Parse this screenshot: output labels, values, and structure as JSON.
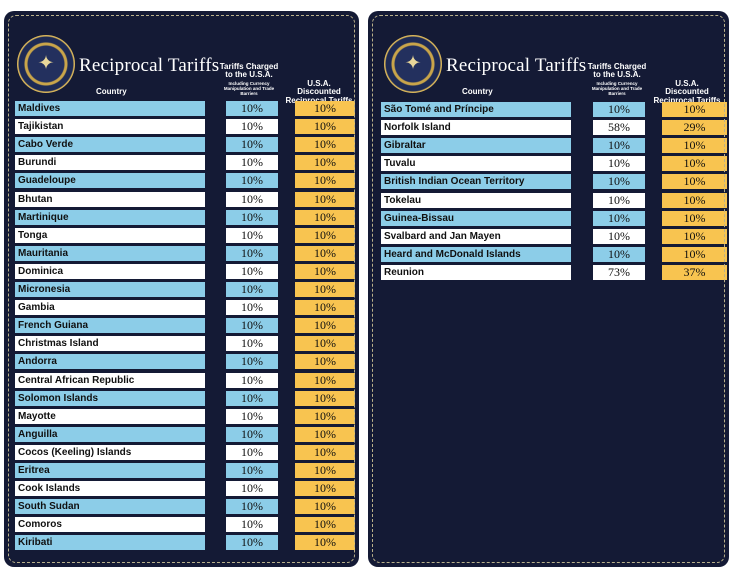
{
  "title": "Reciprocal Tariffs",
  "headers": {
    "country": "Country",
    "charged": "Tariffs Charged to the U.S.A.",
    "charged_sub": "Including Currency Manipulation and Trade Barriers",
    "discounted": "U.S.A. Discounted Reciprocal Tariffs"
  },
  "colors": {
    "panel": "#141a35",
    "blue_row": "#8ccde8",
    "white_row": "#ffffff",
    "discount_cell": "#f8c450"
  },
  "seal_icon": "presidential-seal",
  "left_rows": [
    {
      "country": "Maldives",
      "charged": "10%",
      "discounted": "10%"
    },
    {
      "country": "Tajikistan",
      "charged": "10%",
      "discounted": "10%"
    },
    {
      "country": "Cabo Verde",
      "charged": "10%",
      "discounted": "10%"
    },
    {
      "country": "Burundi",
      "charged": "10%",
      "discounted": "10%"
    },
    {
      "country": "Guadeloupe",
      "charged": "10%",
      "discounted": "10%"
    },
    {
      "country": "Bhutan",
      "charged": "10%",
      "discounted": "10%"
    },
    {
      "country": "Martinique",
      "charged": "10%",
      "discounted": "10%"
    },
    {
      "country": "Tonga",
      "charged": "10%",
      "discounted": "10%"
    },
    {
      "country": "Mauritania",
      "charged": "10%",
      "discounted": "10%"
    },
    {
      "country": "Dominica",
      "charged": "10%",
      "discounted": "10%"
    },
    {
      "country": "Micronesia",
      "charged": "10%",
      "discounted": "10%"
    },
    {
      "country": "Gambia",
      "charged": "10%",
      "discounted": "10%"
    },
    {
      "country": "French Guiana",
      "charged": "10%",
      "discounted": "10%"
    },
    {
      "country": "Christmas Island",
      "charged": "10%",
      "discounted": "10%"
    },
    {
      "country": "Andorra",
      "charged": "10%",
      "discounted": "10%"
    },
    {
      "country": "Central African Republic",
      "charged": "10%",
      "discounted": "10%"
    },
    {
      "country": "Solomon Islands",
      "charged": "10%",
      "discounted": "10%"
    },
    {
      "country": "Mayotte",
      "charged": "10%",
      "discounted": "10%"
    },
    {
      "country": "Anguilla",
      "charged": "10%",
      "discounted": "10%"
    },
    {
      "country": "Cocos (Keeling) Islands",
      "charged": "10%",
      "discounted": "10%"
    },
    {
      "country": "Eritrea",
      "charged": "10%",
      "discounted": "10%"
    },
    {
      "country": "Cook Islands",
      "charged": "10%",
      "discounted": "10%"
    },
    {
      "country": "South Sudan",
      "charged": "10%",
      "discounted": "10%"
    },
    {
      "country": "Comoros",
      "charged": "10%",
      "discounted": "10%"
    },
    {
      "country": "Kiribati",
      "charged": "10%",
      "discounted": "10%"
    }
  ],
  "right_rows": [
    {
      "country": "São Tomé and Príncipe",
      "charged": "10%",
      "discounted": "10%"
    },
    {
      "country": "Norfolk Island",
      "charged": "58%",
      "discounted": "29%"
    },
    {
      "country": "Gibraltar",
      "charged": "10%",
      "discounted": "10%"
    },
    {
      "country": "Tuvalu",
      "charged": "10%",
      "discounted": "10%"
    },
    {
      "country": "British Indian Ocean Territory",
      "charged": "10%",
      "discounted": "10%"
    },
    {
      "country": "Tokelau",
      "charged": "10%",
      "discounted": "10%"
    },
    {
      "country": "Guinea-Bissau",
      "charged": "10%",
      "discounted": "10%"
    },
    {
      "country": "Svalbard and Jan Mayen",
      "charged": "10%",
      "discounted": "10%"
    },
    {
      "country": "Heard and McDonald Islands",
      "charged": "10%",
      "discounted": "10%"
    },
    {
      "country": "Reunion",
      "charged": "73%",
      "discounted": "37%"
    }
  ]
}
